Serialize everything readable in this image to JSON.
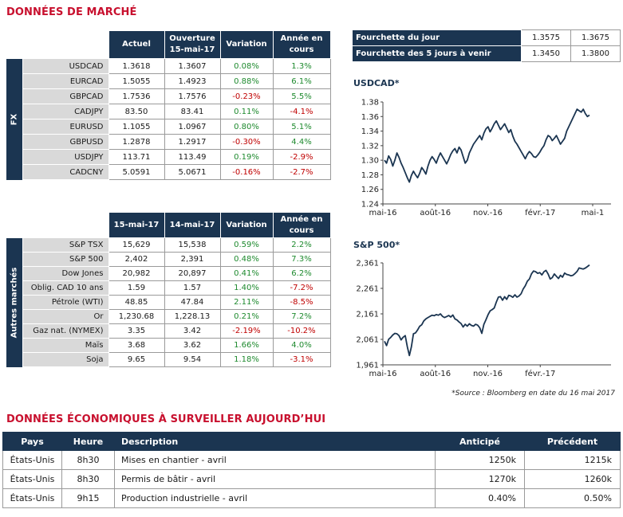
{
  "market_title": "DONNÉES DE MARCHÉ",
  "fx": {
    "side_label": "FX",
    "headers": [
      "Actuel",
      "Ouverture 15-mai-17",
      "Variation",
      "Année en cours"
    ],
    "rows": [
      {
        "name": "USDCAD",
        "actuel": "1.3618",
        "ouverture": "1.3607",
        "variation": "0.08%",
        "annee": "1.3%",
        "var_sign": "pos",
        "ann_sign": "pos"
      },
      {
        "name": "EURCAD",
        "actuel": "1.5055",
        "ouverture": "1.4923",
        "variation": "0.88%",
        "annee": "6.1%",
        "var_sign": "pos",
        "ann_sign": "pos"
      },
      {
        "name": "GBPCAD",
        "actuel": "1.7536",
        "ouverture": "1.7576",
        "variation": "-0.23%",
        "annee": "5.5%",
        "var_sign": "neg",
        "ann_sign": "pos"
      },
      {
        "name": "CADJPY",
        "actuel": "83.50",
        "ouverture": "83.41",
        "variation": "0.11%",
        "annee": "-4.1%",
        "var_sign": "pos",
        "ann_sign": "neg"
      },
      {
        "name": "EURUSD",
        "actuel": "1.1055",
        "ouverture": "1.0967",
        "variation": "0.80%",
        "annee": "5.1%",
        "var_sign": "pos",
        "ann_sign": "pos"
      },
      {
        "name": "GBPUSD",
        "actuel": "1.2878",
        "ouverture": "1.2917",
        "variation": "-0.30%",
        "annee": "4.4%",
        "var_sign": "neg",
        "ann_sign": "pos"
      },
      {
        "name": "USDJPY",
        "actuel": "113.71",
        "ouverture": "113.49",
        "variation": "0.19%",
        "annee": "-2.9%",
        "var_sign": "pos",
        "ann_sign": "neg"
      },
      {
        "name": "CADCNY",
        "actuel": "5.0591",
        "ouverture": "5.0671",
        "variation": "-0.16%",
        "annee": "-2.7%",
        "var_sign": "neg",
        "ann_sign": "neg"
      }
    ]
  },
  "markets": {
    "side_label": "Autres marchés",
    "headers": [
      "15-mai-17",
      "14-mai-17",
      "Variation",
      "Année en cours"
    ],
    "rows": [
      {
        "name": "S&P TSX",
        "d1": "15,629",
        "d2": "15,538",
        "variation": "0.59%",
        "annee": "2.2%",
        "var_sign": "pos",
        "ann_sign": "pos"
      },
      {
        "name": "S&P 500",
        "d1": "2,402",
        "d2": "2,391",
        "variation": "0.48%",
        "annee": "7.3%",
        "var_sign": "pos",
        "ann_sign": "pos"
      },
      {
        "name": "Dow Jones",
        "d1": "20,982",
        "d2": "20,897",
        "variation": "0.41%",
        "annee": "6.2%",
        "var_sign": "pos",
        "ann_sign": "pos"
      },
      {
        "name": "Oblig. CAD 10 ans",
        "d1": "1.59",
        "d2": "1.57",
        "variation": "1.40%",
        "annee": "-7.2%",
        "var_sign": "pos",
        "ann_sign": "neg"
      },
      {
        "name": "Pétrole (WTI)",
        "d1": "48.85",
        "d2": "47.84",
        "variation": "2.11%",
        "annee": "-8.5%",
        "var_sign": "pos",
        "ann_sign": "neg"
      },
      {
        "name": "Or",
        "d1": "1,230.68",
        "d2": "1,228.13",
        "variation": "0.21%",
        "annee": "7.2%",
        "var_sign": "pos",
        "ann_sign": "pos"
      },
      {
        "name": "Gaz nat. (NYMEX)",
        "d1": "3.35",
        "d2": "3.42",
        "variation": "-2.19%",
        "annee": "-10.2%",
        "var_sign": "neg",
        "ann_sign": "neg"
      },
      {
        "name": "Maïs",
        "d1": "3.68",
        "d2": "3.62",
        "variation": "1.66%",
        "annee": "4.0%",
        "var_sign": "pos",
        "ann_sign": "pos"
      },
      {
        "name": "Soja",
        "d1": "9.65",
        "d2": "9.54",
        "variation": "1.18%",
        "annee": "-3.1%",
        "var_sign": "pos",
        "ann_sign": "neg"
      }
    ]
  },
  "ranges": [
    {
      "label": "Fourchette du jour",
      "low": "1.3575",
      "high": "1.3675"
    },
    {
      "label": "Fourchette des 5 jours à venir",
      "low": "1.3450",
      "high": "1.3800"
    }
  ],
  "chart_data": [
    {
      "type": "line",
      "title": "USDCAD*",
      "ylim": [
        1.24,
        1.38
      ],
      "yticks": [
        "1.38",
        "1.36",
        "1.34",
        "1.32",
        "1.30",
        "1.28",
        "1.26",
        "1.24"
      ],
      "xticks": [
        "mai-16",
        "août-16",
        "nov.-16",
        "févr.-17",
        "mai-1"
      ],
      "values": [
        1.3,
        1.296,
        1.306,
        1.301,
        1.292,
        1.3,
        1.31,
        1.304,
        1.296,
        1.29,
        1.283,
        1.276,
        1.27,
        1.279,
        1.285,
        1.28,
        1.276,
        1.282,
        1.29,
        1.286,
        1.281,
        1.292,
        1.3,
        1.305,
        1.301,
        1.296,
        1.304,
        1.31,
        1.305,
        1.3,
        1.295,
        1.301,
        1.308,
        1.313,
        1.316,
        1.31,
        1.318,
        1.314,
        1.305,
        1.296,
        1.3,
        1.31,
        1.316,
        1.322,
        1.326,
        1.33,
        1.334,
        1.328,
        1.337,
        1.343,
        1.346,
        1.339,
        1.344,
        1.35,
        1.354,
        1.348,
        1.342,
        1.346,
        1.35,
        1.344,
        1.338,
        1.342,
        1.333,
        1.326,
        1.322,
        1.317,
        1.312,
        1.307,
        1.302,
        1.308,
        1.312,
        1.309,
        1.305,
        1.304,
        1.307,
        1.311,
        1.316,
        1.32,
        1.328,
        1.334,
        1.332,
        1.327,
        1.33,
        1.334,
        1.328,
        1.322,
        1.326,
        1.33,
        1.34,
        1.346,
        1.352,
        1.358,
        1.364,
        1.37,
        1.368,
        1.366,
        1.37,
        1.364,
        1.36,
        1.362
      ],
      "grid": false
    },
    {
      "type": "line",
      "title": "S&P 500*",
      "ylim": [
        1961,
        2411
      ],
      "yticks": [
        "2,361",
        "2,261",
        "2,161",
        "2,061",
        "1,961"
      ],
      "xticks": [
        "mai-16",
        "août-16",
        "nov.-16",
        "févr.-17"
      ],
      "values": [
        2065,
        2046,
        2074,
        2082,
        2093,
        2100,
        2098,
        2090,
        2071,
        2083,
        2090,
        2041,
        2002,
        2040,
        2098,
        2102,
        2115,
        2131,
        2138,
        2155,
        2164,
        2170,
        2175,
        2180,
        2178,
        2183,
        2180,
        2186,
        2175,
        2170,
        2174,
        2179,
        2172,
        2181,
        2164,
        2159,
        2150,
        2143,
        2128,
        2140,
        2132,
        2142,
        2135,
        2132,
        2140,
        2136,
        2125,
        2100,
        2140,
        2160,
        2182,
        2199,
        2205,
        2212,
        2238,
        2260,
        2262,
        2246,
        2262,
        2250,
        2268,
        2265,
        2259,
        2270,
        2260,
        2265,
        2275,
        2296,
        2310,
        2330,
        2340,
        2363,
        2375,
        2372,
        2365,
        2368,
        2358,
        2372,
        2378,
        2362,
        2340,
        2346,
        2362,
        2352,
        2342,
        2356,
        2348,
        2366,
        2360,
        2358,
        2354,
        2356,
        2364,
        2373,
        2389,
        2386,
        2384,
        2388,
        2395,
        2402
      ],
      "grid": false
    }
  ],
  "source_note": "*Source : Bloomberg en date du  16 mai 2017",
  "eco_title": "DONNÉES ÉCONOMIQUES À SURVEILLER AUJOURD’HUI",
  "eco": {
    "headers": [
      "Pays",
      "Heure",
      "Description",
      "Anticipé",
      "Précédent"
    ],
    "rows": [
      {
        "pays": "États-Unis",
        "heure": "8h30",
        "desc": "Mises en chantier - avril",
        "anticipe": "1250k",
        "precedent": "1215k"
      },
      {
        "pays": "États-Unis",
        "heure": "8h30",
        "desc": "Permis de bâtir - avril",
        "anticipe": "1270k",
        "precedent": "1260k"
      },
      {
        "pays": "États-Unis",
        "heure": "9h15",
        "desc": "Production industrielle - avril",
        "anticipe": "0.40%",
        "precedent": "0.50%"
      }
    ]
  },
  "colors": {
    "navy": "#1b3551",
    "red": "#c8102e",
    "positive": "#1e8a2e",
    "negative": "#c00000",
    "label_bg": "#d9d9d9"
  }
}
